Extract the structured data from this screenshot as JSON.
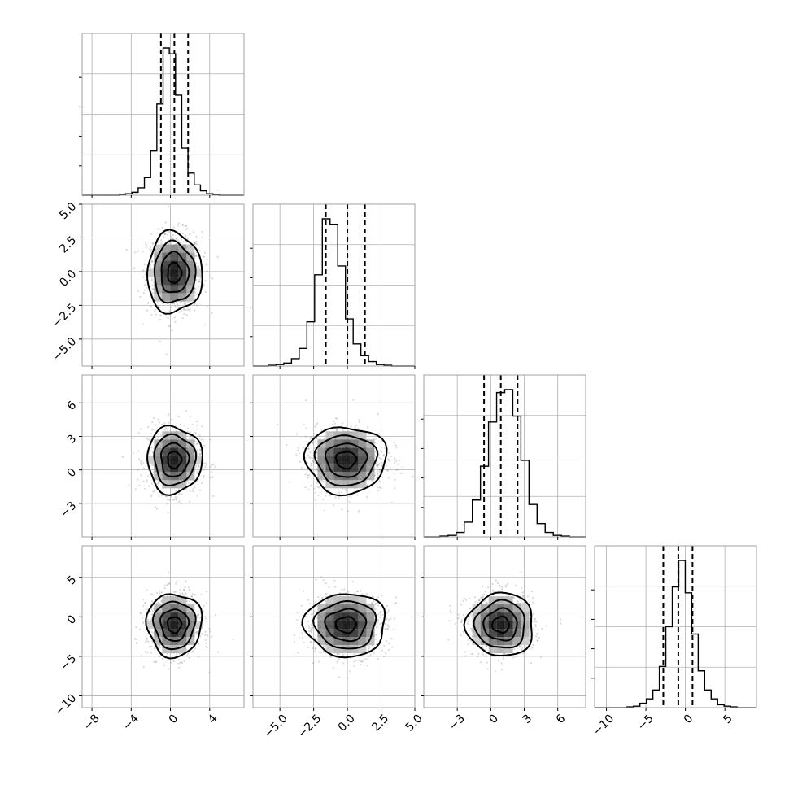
{
  "chart_data": {
    "type": "corner",
    "title": "",
    "parameters": [
      {
        "range": [
          -9,
          7.5
        ],
        "mean": 0.4,
        "sd": 1.4,
        "quantiles": [
          -0.97,
          0.4,
          1.8
        ],
        "hist_bins": [
          0,
          0,
          0,
          0,
          0,
          0,
          0.005,
          0.01,
          0.02,
          0.05,
          0.12,
          0.3,
          0.62,
          1.0,
          0.96,
          0.68,
          0.32,
          0.15,
          0.07,
          0.03,
          0.01,
          0.005,
          0,
          0,
          0,
          0
        ],
        "ticks": [
          -8,
          -4,
          0,
          4
        ],
        "tick_labels": [
          "−8",
          "−4",
          "0",
          "4"
        ]
      },
      {
        "range": [
          -7.0,
          5.0
        ],
        "mean": -0.1,
        "sd": 1.5,
        "quantiles": [
          -1.6,
          0.0,
          1.3
        ],
        "hist_bins": [
          0,
          0,
          0.005,
          0.01,
          0.02,
          0.05,
          0.12,
          0.3,
          0.62,
          1.0,
          0.96,
          0.68,
          0.32,
          0.15,
          0.07,
          0.03,
          0.01,
          0.005,
          0,
          0,
          0
        ],
        "ticks": [
          -5.0,
          -2.5,
          0.0,
          2.5,
          5.0
        ],
        "tick_labels": [
          "−5.0",
          "−2.5",
          "0.0",
          "2.5",
          "5.0"
        ]
      },
      {
        "range": [
          -6.0,
          8.5
        ],
        "mean": 0.9,
        "sd": 1.5,
        "quantiles": [
          -0.6,
          0.9,
          2.4
        ],
        "hist_bins": [
          0,
          0,
          0.005,
          0.01,
          0.03,
          0.1,
          0.25,
          0.48,
          0.78,
          0.98,
          1.0,
          0.82,
          0.52,
          0.22,
          0.09,
          0.03,
          0.01,
          0.005,
          0,
          0
        ],
        "ticks": [
          -3,
          0,
          3,
          6
        ],
        "tick_labels": [
          "−3",
          "0",
          "3",
          "6"
        ]
      },
      {
        "range": [
          -11.5,
          9.0
        ],
        "mean": -1.0,
        "sd": 2.0,
        "quantiles": [
          -2.8,
          -0.9,
          0.9
        ],
        "hist_bins": [
          0,
          0,
          0,
          0,
          0,
          0.005,
          0.01,
          0.03,
          0.06,
          0.12,
          0.28,
          0.55,
          0.82,
          1.0,
          0.78,
          0.5,
          0.25,
          0.12,
          0.06,
          0.02,
          0.01,
          0.005,
          0,
          0,
          0
        ],
        "ticks": [
          -10,
          -5,
          0,
          5
        ],
        "tick_labels": [
          "−10",
          "−5",
          "0",
          "5"
        ]
      }
    ],
    "contour_levels_sigma": [
      0.5,
      1.0,
      1.5,
      2.0
    ],
    "scatter_points_per_panel": 900,
    "grid": true,
    "colors": {
      "hist": "#000000",
      "quantile": "#000000",
      "points": "#808080",
      "grid": "#b0b0b0"
    },
    "y_tick_labels": {
      "row1": [
        "5.0",
        "2.5",
        "0.0",
        "−2.5",
        "−5.0"
      ],
      "row2": [
        "6",
        "3",
        "0",
        "−3"
      ],
      "row3": [
        "5",
        "0",
        "−5",
        "−10"
      ]
    }
  }
}
